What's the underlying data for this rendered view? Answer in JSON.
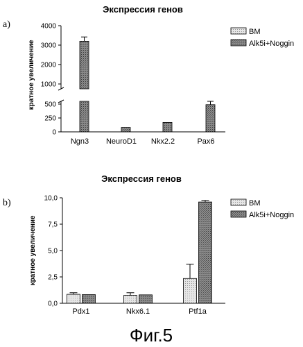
{
  "chart_data": [
    {
      "type": "bar",
      "panel_label": "a)",
      "title": "Экспрессия генов",
      "ylabel": "кратное увеличение",
      "categories": [
        "Ngn3",
        "NeuroD1",
        "Nkx2.2",
        "Pax6"
      ],
      "axis_break": true,
      "lower_ylim": [
        0,
        500
      ],
      "lower_ticks": [
        "0",
        "250",
        "500"
      ],
      "upper_ylim": [
        1000,
        4000
      ],
      "upper_ticks": [
        "1000",
        "2000",
        "3000",
        "4000"
      ],
      "legend_position": "top-right",
      "series": [
        {
          "name": "BM",
          "fill": "light",
          "values": [
            0,
            0,
            0,
            0
          ],
          "errors": [
            0,
            0,
            0,
            0
          ]
        },
        {
          "name": "Alk5i+Noggin",
          "fill": "dark",
          "values": [
            3200,
            80,
            170,
            490
          ],
          "errors": [
            220,
            0,
            0,
            60
          ]
        }
      ]
    },
    {
      "type": "bar",
      "panel_label": "b)",
      "title": "Экспрессия генов",
      "ylabel": "кратное увеличение",
      "categories": [
        "Pdx1",
        "Nkx6.1",
        "Ptf1a"
      ],
      "ylim": [
        0,
        10
      ],
      "y_ticks": [
        "0,0",
        "2,5",
        "5,0",
        "7,5",
        "10,0"
      ],
      "legend_position": "top-right",
      "series": [
        {
          "name": "BM",
          "fill": "light",
          "values": [
            0.85,
            0.75,
            2.35
          ],
          "errors": [
            0.15,
            0.25,
            1.35
          ]
        },
        {
          "name": "Alk5i+Noggin",
          "fill": "dark",
          "values": [
            0.82,
            0.8,
            9.6
          ],
          "errors": [
            0,
            0,
            0.15
          ]
        }
      ]
    }
  ],
  "caption": "Фиг.5"
}
